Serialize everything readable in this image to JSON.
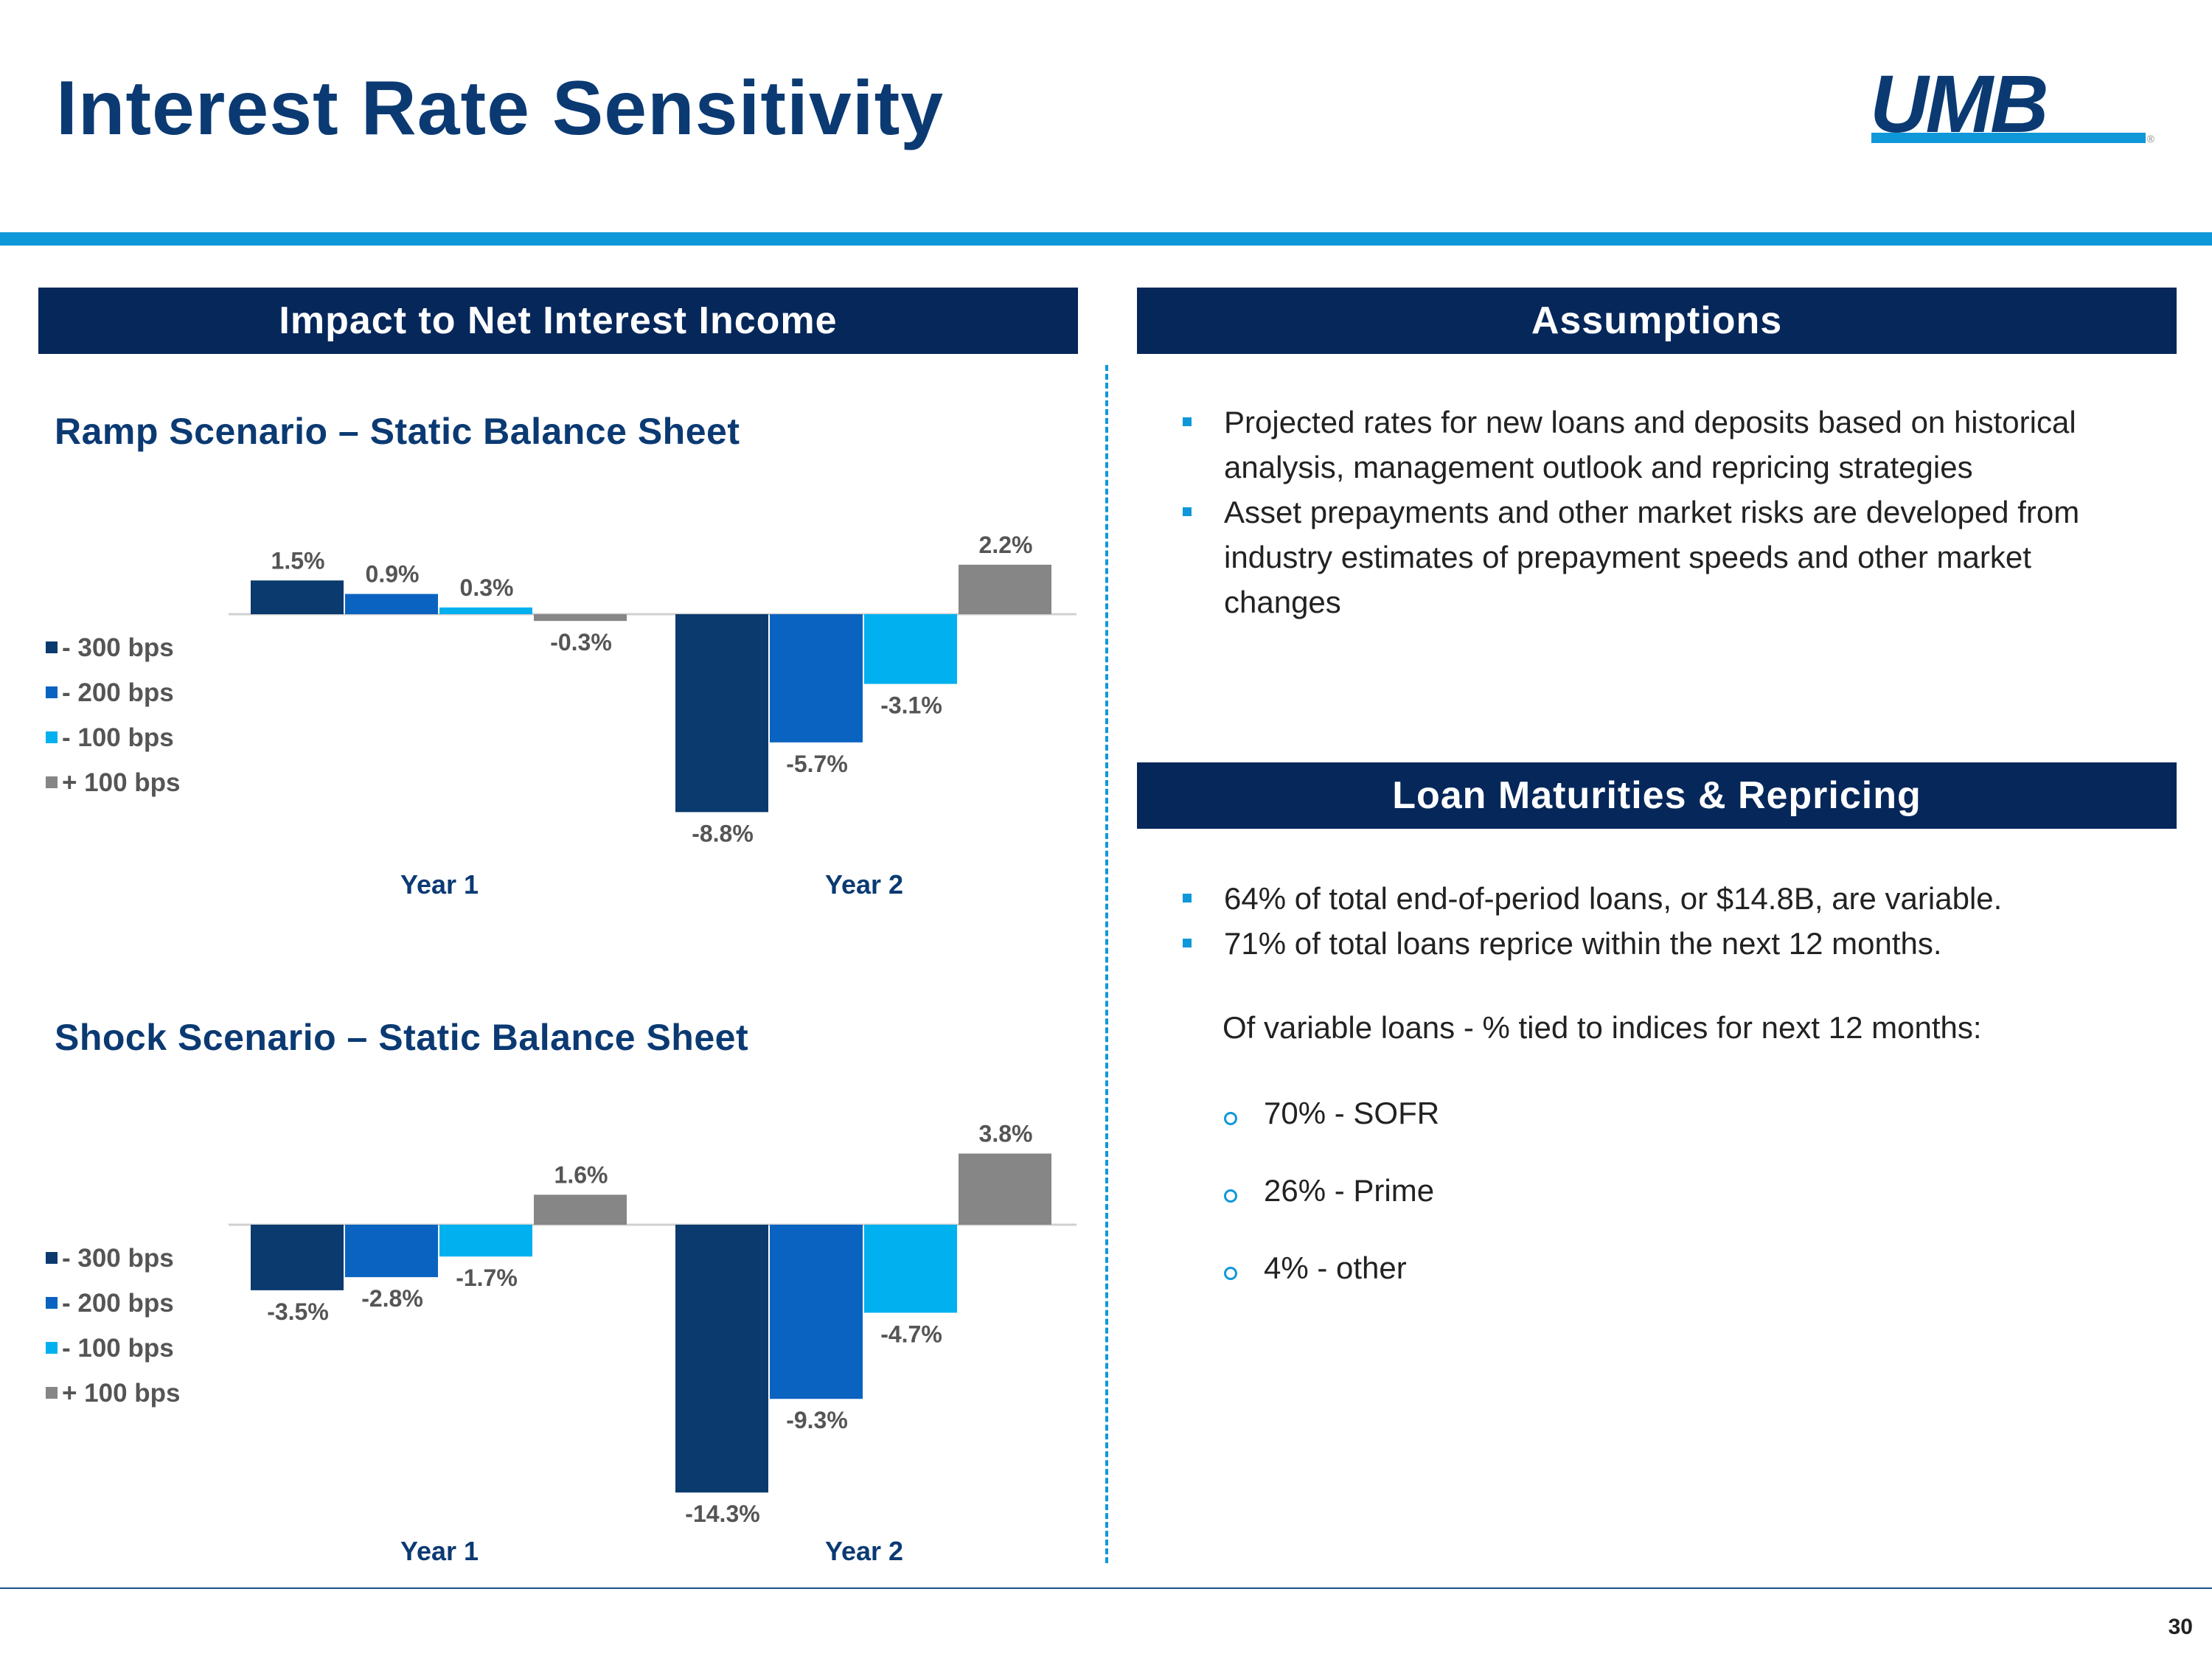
{
  "title": "Interest Rate Sensitivity",
  "logo": {
    "text": "UMB",
    "mark": "®"
  },
  "left_header": "Impact to Net Interest Income",
  "assumptions": {
    "header": "Assumptions",
    "bullets": [
      "Projected rates for new loans and deposits based on historical analysis, management outlook and repricing strategies",
      "Asset prepayments and other market risks are developed from industry estimates of prepayment speeds and other market changes"
    ]
  },
  "loans": {
    "header": "Loan Maturities & Repricing",
    "bullets": [
      "64% of total end-of-period loans, or $14.8B, are variable.",
      "71% of total loans reprice within the next 12 months."
    ],
    "note": "Of variable loans - % tied to indices for next 12 months:",
    "indices": [
      "70% - SOFR",
      "26% - Prime",
      "4% - other"
    ]
  },
  "colors": {
    "navy": "#0b3a73",
    "header_bg": "#06275a",
    "accent": "#0f98d9"
  },
  "chart_data": [
    {
      "type": "bar",
      "title": "Ramp Scenario – Static Balance Sheet",
      "categories": [
        "Year 1",
        "Year 2"
      ],
      "series": [
        {
          "name": "- 300 bps",
          "color": "#0a3a6e",
          "values": [
            1.5,
            -8.8
          ],
          "labels": [
            "1.5%",
            "-8.8%"
          ]
        },
        {
          "name": "- 200 bps",
          "color": "#0a63c0",
          "values": [
            0.9,
            -5.7
          ],
          "labels": [
            "0.9%",
            "-5.7%"
          ]
        },
        {
          "name": "- 100 bps",
          "color": "#00b0ef",
          "values": [
            0.3,
            -3.1
          ],
          "labels": [
            "0.3%",
            "-3.1%"
          ]
        },
        {
          "name": "+ 100 bps",
          "color": "#868686",
          "values": [
            -0.3,
            2.2
          ],
          "labels": [
            "-0.3%",
            "2.2%"
          ]
        }
      ],
      "ylabel": "",
      "ylim": [
        -10,
        3
      ],
      "legend": "left"
    },
    {
      "type": "bar",
      "title": "Shock Scenario – Static Balance Sheet",
      "categories": [
        "Year 1",
        "Year 2"
      ],
      "series": [
        {
          "name": "- 300 bps",
          "color": "#0a3a6e",
          "values": [
            -3.5,
            -14.3
          ],
          "labels": [
            "-3.5%",
            "-14.3%"
          ]
        },
        {
          "name": "- 200 bps",
          "color": "#0a63c0",
          "values": [
            -2.8,
            -9.3
          ],
          "labels": [
            "-2.8%",
            "-9.3%"
          ]
        },
        {
          "name": "- 100 bps",
          "color": "#00b0ef",
          "values": [
            -1.7,
            -4.7
          ],
          "labels": [
            "-1.7%",
            "-4.7%"
          ]
        },
        {
          "name": "+ 100 bps",
          "color": "#868686",
          "values": [
            1.6,
            3.8
          ],
          "labels": [
            "1.6%",
            "3.8%"
          ]
        }
      ],
      "ylabel": "",
      "ylim": [
        -15,
        5
      ],
      "legend": "left"
    }
  ],
  "page_number": "30"
}
